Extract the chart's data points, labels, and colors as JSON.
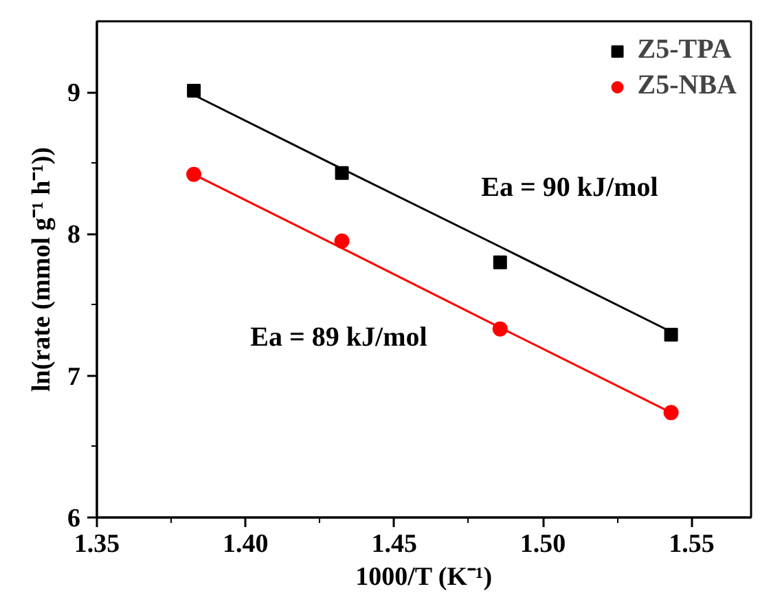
{
  "chart_data": {
    "type": "scatter",
    "xlabel": "1000/T (K⁻¹)",
    "ylabel": "ln(rate (mmol g⁻¹ h⁻¹))",
    "xlim": [
      1.35,
      1.57
    ],
    "ylim": [
      6,
      9.5
    ],
    "xticks": [
      1.35,
      {
        "value": 1.4,
        "label": "1.40"
      },
      1.45,
      {
        "value": 1.5,
        "label": "1.50"
      },
      1.55
    ],
    "yticks": [
      6,
      7,
      8,
      9
    ],
    "x": [
      1.3826,
      1.4324,
      1.4856,
      1.5431
    ],
    "series": [
      {
        "name": "Z5-TPA",
        "color": "#000000",
        "marker": "square",
        "values": [
          9.01,
          8.43,
          7.8,
          7.29
        ]
      },
      {
        "name": "Z5-NBA",
        "color": "#ff0000",
        "marker": "circle",
        "values": [
          8.42,
          7.95,
          7.33,
          6.74
        ]
      },
      {
        "type": "line",
        "color": "#000000",
        "x": [
          1.3826,
          1.4324,
          1.4856,
          1.5431
        ],
        "values": [
          8.98,
          8.46,
          7.91,
          7.31
        ]
      },
      {
        "type": "line",
        "color": "#ff0000",
        "x": [
          1.3826,
          1.4324,
          1.4856,
          1.5431
        ],
        "values": [
          8.42,
          7.9,
          7.34,
          6.74
        ]
      }
    ],
    "annotations": [
      "Ea = 90 kJ/mol",
      "Ea = 89 kJ/mol"
    ],
    "legend": "top right",
    "grid": false
  }
}
